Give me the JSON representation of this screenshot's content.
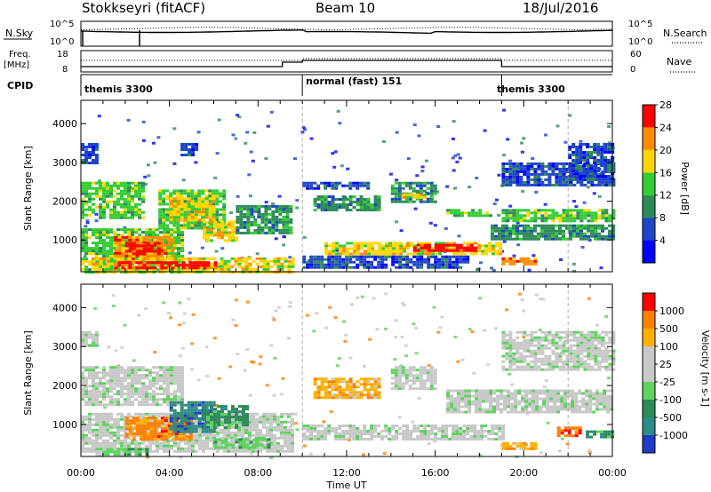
{
  "header": {
    "station": "Stokkseyri (fitACF)",
    "beam": "Beam 10",
    "date": "18/Jul/2016"
  },
  "strips": {
    "nsky": {
      "label": "N.Sky",
      "tick_top": "10^5",
      "tick_bottom": "10^0"
    },
    "nsearch": {
      "label": "N.Search",
      "tick_top": "10^5",
      "tick_bottom": "10^0"
    },
    "freq": {
      "label_line1": "Freq.",
      "label_line2": "[MHz]",
      "tick_top": "18",
      "tick_bottom": "8"
    },
    "nave": {
      "label": "Nave",
      "tick_top": "60",
      "tick_bottom": "0"
    },
    "cpid": {
      "label": "CPID",
      "segments": [
        {
          "name": "themis 3300",
          "start": 0,
          "end": 10
        },
        {
          "name": "normal (fast) 151",
          "start": 10,
          "end": 19
        },
        {
          "name": "themis 3300",
          "start": 19,
          "end": 24
        }
      ]
    }
  },
  "chart_data": [
    {
      "type": "heatmap",
      "title": "",
      "xlabel": "",
      "ylabel": "Slant Range [km]",
      "xlim": [
        0,
        24
      ],
      "ylim": [
        180,
        4600
      ],
      "yticks": [
        1000,
        2000,
        3000,
        4000
      ],
      "colorbar": {
        "label": "Power [dB]",
        "ticks": [
          "4",
          "8",
          "12",
          "16",
          "20",
          "24",
          "28"
        ],
        "colors": [
          "#0000ff",
          "#1e46c8",
          "#2e8b57",
          "#32cd32",
          "#ffd700",
          "#ff8c00",
          "#ff0000"
        ]
      },
      "regions": [
        {
          "t0": 0.0,
          "t1": 2.8,
          "r0": 1550,
          "r1": 2500,
          "level": 3
        },
        {
          "t0": 0.0,
          "t1": 4.5,
          "r0": 200,
          "r1": 1300,
          "level": 3
        },
        {
          "t0": 1.5,
          "t1": 4.2,
          "r0": 500,
          "r1": 1100,
          "level": 5
        },
        {
          "t0": 2.0,
          "t1": 3.5,
          "r0": 650,
          "r1": 950,
          "level": 6
        },
        {
          "t0": 3.5,
          "t1": 6.5,
          "r0": 1300,
          "r1": 2300,
          "level": 3
        },
        {
          "t0": 4.0,
          "t1": 6.0,
          "r0": 1500,
          "r1": 2100,
          "level": 4
        },
        {
          "t0": 5.5,
          "t1": 7.0,
          "r0": 1000,
          "r1": 1500,
          "level": 4
        },
        {
          "t0": 0.5,
          "t1": 9.5,
          "r0": 200,
          "r1": 550,
          "level": 4
        },
        {
          "t0": 1.5,
          "t1": 6.0,
          "r0": 250,
          "r1": 450,
          "level": 6
        },
        {
          "t0": 7.0,
          "t1": 9.5,
          "r0": 1200,
          "r1": 1900,
          "level": 2
        },
        {
          "t0": 0.0,
          "t1": 0.8,
          "r0": 3000,
          "r1": 3500,
          "level": 1
        },
        {
          "t0": 4.5,
          "t1": 5.3,
          "r0": 3200,
          "r1": 3500,
          "level": 1
        },
        {
          "t0": 10.5,
          "t1": 13.5,
          "r0": 1750,
          "r1": 2150,
          "level": 2
        },
        {
          "t0": 10.0,
          "t1": 13.0,
          "r0": 2300,
          "r1": 2500,
          "level": 1
        },
        {
          "t0": 14.0,
          "t1": 16.0,
          "r0": 2000,
          "r1": 2500,
          "level": 2
        },
        {
          "t0": 14.5,
          "t1": 15.5,
          "r0": 2100,
          "r1": 2200,
          "level": 4
        },
        {
          "t0": 11.0,
          "t1": 19.0,
          "r0": 650,
          "r1": 950,
          "level": 4
        },
        {
          "t0": 15.0,
          "t1": 18.0,
          "r0": 700,
          "r1": 900,
          "level": 6
        },
        {
          "t0": 10.0,
          "t1": 17.5,
          "r0": 300,
          "r1": 600,
          "level": 1
        },
        {
          "t0": 16.5,
          "t1": 18.5,
          "r0": 1600,
          "r1": 1800,
          "level": 3
        },
        {
          "t0": 19.0,
          "t1": 24.0,
          "r0": 1500,
          "r1": 1800,
          "level": 3
        },
        {
          "t0": 18.5,
          "t1": 24.0,
          "r0": 1000,
          "r1": 1400,
          "level": 2
        },
        {
          "t0": 19.0,
          "t1": 24.0,
          "r0": 2400,
          "r1": 3000,
          "level": 1
        },
        {
          "t0": 22.0,
          "t1": 24.0,
          "r0": 2600,
          "r1": 3500,
          "level": 1
        },
        {
          "t0": 19.0,
          "t1": 20.5,
          "r0": 400,
          "r1": 550,
          "level": 5
        }
      ]
    },
    {
      "type": "heatmap",
      "title": "",
      "xlabel": "Time UT",
      "ylabel": "Slant Range [km]",
      "xlim": [
        0,
        24
      ],
      "ylim": [
        180,
        4600
      ],
      "yticks": [
        1000,
        2000,
        3000,
        4000
      ],
      "xticks": [
        "00:00",
        "04:00",
        "08:00",
        "12:00",
        "16:00",
        "20:00",
        "00:00"
      ],
      "colorbar": {
        "label": "Velocity [m s-1]",
        "ticks": [
          "1000",
          "500",
          "100",
          "25",
          "-25",
          "-100",
          "-500",
          "-1000"
        ],
        "colors": [
          "#1e3cc8",
          "#2e8b8b",
          "#2e8b57",
          "#5fd25f",
          "#c8c8c8",
          "#c8c8c8",
          "#ffb000",
          "#ff7f00",
          "#ff0000"
        ]
      },
      "regions": [
        {
          "t0": 0.0,
          "t1": 4.5,
          "r0": 1500,
          "r1": 2500,
          "level": 4
        },
        {
          "t0": 0.0,
          "t1": 9.5,
          "r0": 300,
          "r1": 1300,
          "level": 4
        },
        {
          "t0": 2.0,
          "t1": 5.0,
          "r0": 600,
          "r1": 1200,
          "level": 7
        },
        {
          "t0": 4.0,
          "t1": 6.0,
          "r0": 800,
          "r1": 1600,
          "level": 1
        },
        {
          "t0": 5.5,
          "t1": 7.5,
          "r0": 900,
          "r1": 1500,
          "level": 2
        },
        {
          "t0": 0.5,
          "t1": 3.0,
          "r0": 200,
          "r1": 400,
          "level": 3
        },
        {
          "t0": 6.0,
          "t1": 8.5,
          "r0": 400,
          "r1": 650,
          "level": 3
        },
        {
          "t0": 0.0,
          "t1": 0.8,
          "r0": 3000,
          "r1": 3400,
          "level": 4
        },
        {
          "t0": 10.5,
          "t1": 13.5,
          "r0": 1700,
          "r1": 2200,
          "level": 6
        },
        {
          "t0": 14.0,
          "t1": 16.0,
          "r0": 1900,
          "r1": 2500,
          "level": 4
        },
        {
          "t0": 10.0,
          "t1": 19.0,
          "r0": 600,
          "r1": 1000,
          "level": 4
        },
        {
          "t0": 16.5,
          "t1": 24.0,
          "r0": 1300,
          "r1": 1900,
          "level": 4
        },
        {
          "t0": 19.0,
          "t1": 24.0,
          "r0": 2400,
          "r1": 3400,
          "level": 4
        },
        {
          "t0": 19.0,
          "t1": 20.5,
          "r0": 400,
          "r1": 550,
          "level": 6
        },
        {
          "t0": 21.5,
          "t1": 22.5,
          "r0": 700,
          "r1": 950,
          "level": 7
        },
        {
          "t0": 22.8,
          "t1": 24.0,
          "r0": 700,
          "r1": 850,
          "level": 2
        }
      ]
    }
  ]
}
